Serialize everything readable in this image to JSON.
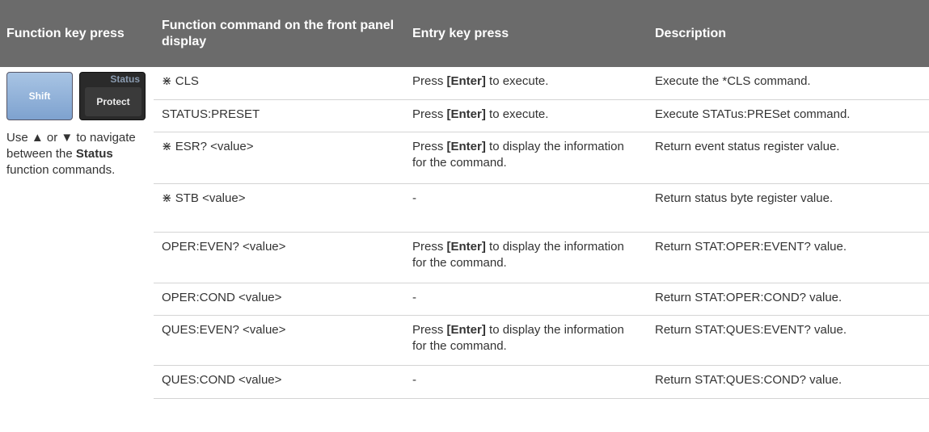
{
  "table": {
    "columns": [
      "Function key press",
      "Function command on the front panel display",
      "Entry key press",
      "Description"
    ],
    "keys": {
      "shift": "Shift",
      "status": "Status",
      "protect": "Protect"
    },
    "note": {
      "before": "Use ▲ or ▼ to navigate between the ",
      "bold": "Status",
      "after": " function commands."
    },
    "rows": [
      {
        "command": "⋇ CLS",
        "entry": {
          "before": "Press ",
          "key": "[Enter]",
          "after": " to execute."
        },
        "description": "Execute the *CLS command."
      },
      {
        "command": "STATUS:PRESET",
        "entry": {
          "before": "Press ",
          "key": "[Enter]",
          "after": " to execute."
        },
        "description": "Execute STATus:PRESet command."
      },
      {
        "command": "⋇ ESR? <value>",
        "entry": {
          "before": "Press ",
          "key": "[Enter]",
          "after": " to display the information for the command."
        },
        "description": "Return event status register value."
      },
      {
        "command": "⋇ STB <value>",
        "entry": {
          "text": "-"
        },
        "description": "Return status byte register value."
      },
      {
        "command": "OPER:EVEN? <value>",
        "entry": {
          "before": "Press ",
          "key": "[Enter]",
          "after": " to display the information for the command."
        },
        "description": "Return STAT:OPER:EVENT? value."
      },
      {
        "command": "OPER:COND <value>",
        "entry": {
          "text": "-"
        },
        "description": "Return STAT:OPER:COND? value."
      },
      {
        "command": "QUES:EVEN? <value>",
        "entry": {
          "before": "Press ",
          "key": "[Enter]",
          "after": " to display the information for the command."
        },
        "description": "Return STAT:QUES:EVENT? value."
      },
      {
        "command": "QUES:COND <value>",
        "entry": {
          "text": "-"
        },
        "description": "Return STAT:QUES:COND? value."
      }
    ]
  }
}
